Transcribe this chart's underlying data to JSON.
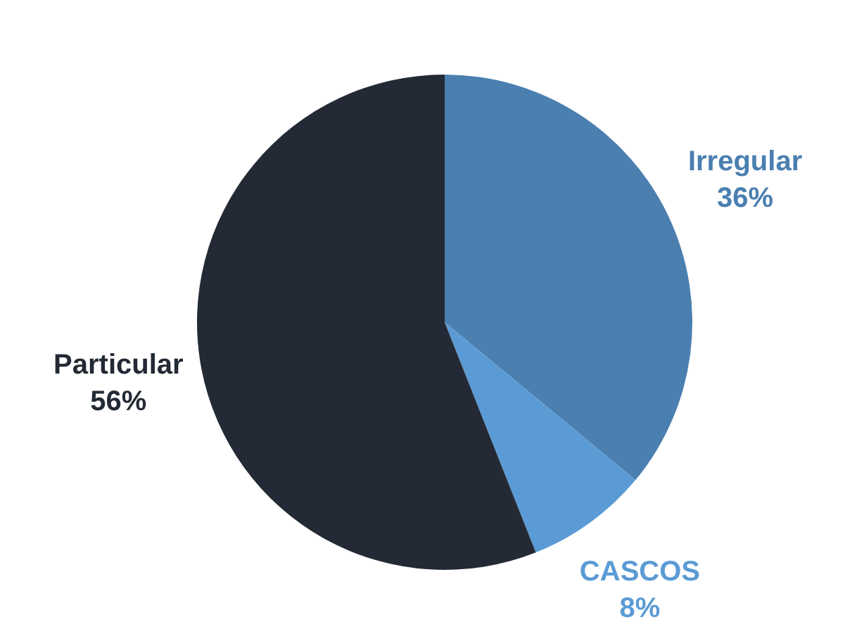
{
  "chart_data": {
    "type": "pie",
    "categories": [
      "Irregular",
      "CASCOS",
      "Particular"
    ],
    "values": [
      36,
      8,
      56
    ],
    "colors": [
      "#4a7fb0",
      "#5b9bd5",
      "#232a35"
    ],
    "value_labels": [
      "36%",
      "8%",
      "56%"
    ],
    "legend": false
  }
}
